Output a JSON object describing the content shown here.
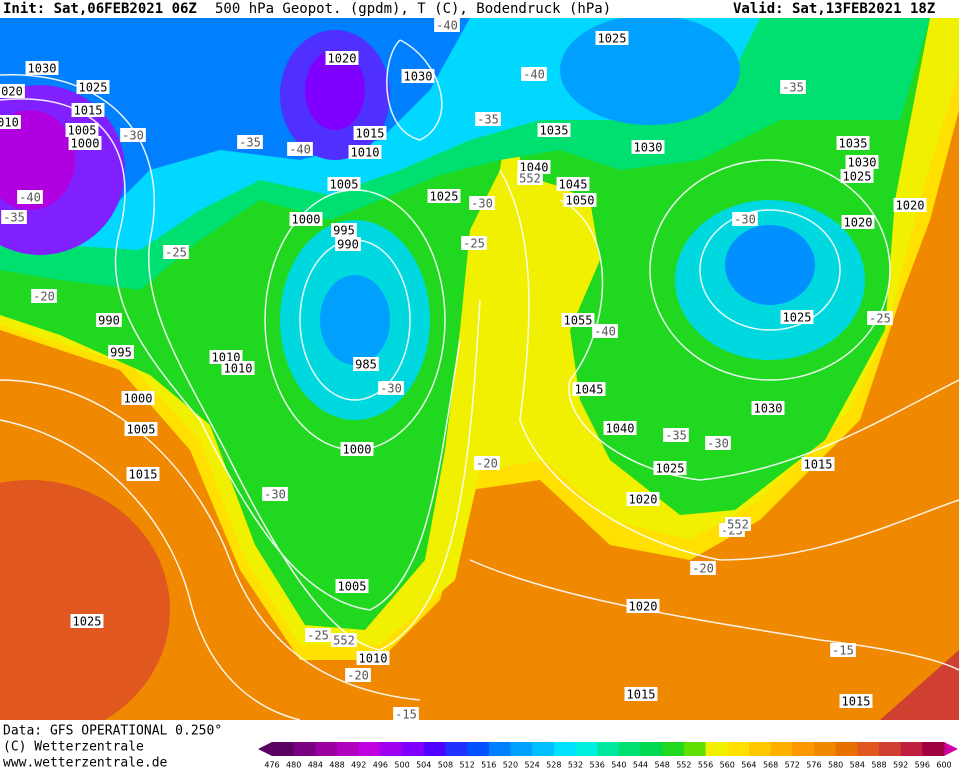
{
  "header": {
    "init": "Init: Sat,06FEB2021 06Z",
    "title": "500 hPa Geopot. (gpdm), T (C), Bodendruck (hPa)",
    "valid": "Valid: Sat,13FEB2021 18Z"
  },
  "map_labels": {
    "pressure": [
      "1030",
      "1025",
      "020",
      "1015",
      "010",
      "1005",
      "1000",
      "1020",
      "1030",
      "1025",
      "1015",
      "1010",
      "1005",
      "1035",
      "1030",
      "1040",
      "1045",
      "1050",
      "1025",
      "1000",
      "995",
      "990",
      "1035",
      "1030",
      "1025",
      "1020",
      "1020",
      "990",
      "995",
      "1010",
      "1010",
      "985",
      "1055",
      "1025",
      "1045",
      "1000",
      "1005",
      "1030",
      "1040",
      "1000",
      "1015",
      "1025",
      "1015",
      "1020",
      "1005",
      "1020",
      "1025",
      "1010",
      "1015",
      "1015"
    ],
    "temperature": [
      "-40",
      "-40",
      "-35",
      "-35",
      "-30",
      "-35",
      "-40",
      "-40",
      "-35",
      "-30",
      "-30",
      "-25",
      "-25",
      "-20",
      "-40",
      "-25",
      "-30",
      "-35",
      "-30",
      "-20",
      "-30",
      "-25",
      "-20",
      "-25",
      "-20",
      "-15",
      "-15"
    ],
    "geopotential": [
      "552",
      "552",
      "552"
    ]
  },
  "footer": {
    "source": "Data: GFS OPERATIONAL 0.250°",
    "copyright": "(C) Wetterzentrale",
    "website": "www.wetterzentrale.de"
  },
  "colorbar": {
    "labels": [
      476,
      480,
      484,
      488,
      492,
      496,
      500,
      504,
      508,
      512,
      516,
      520,
      524,
      528,
      532,
      536,
      540,
      544,
      548,
      552,
      556,
      560,
      564,
      568,
      572,
      576,
      580,
      584,
      588,
      592,
      596,
      600
    ],
    "colors": [
      "#5a0060",
      "#7a0080",
      "#9a00a0",
      "#b000c0",
      "#c000e0",
      "#a000f0",
      "#8000ff",
      "#5000ff",
      "#2030ff",
      "#0050ff",
      "#0080ff",
      "#00a0ff",
      "#00c0ff",
      "#00e0ff",
      "#00f0e0",
      "#00e8a0",
      "#00e070",
      "#00d850",
      "#20d820",
      "#60e000",
      "#f0f000",
      "#ffe000",
      "#ffc800",
      "#ffb000",
      "#ff9800",
      "#f08800",
      "#e87000",
      "#e05820",
      "#d04030",
      "#c02040",
      "#a00040"
    ]
  }
}
